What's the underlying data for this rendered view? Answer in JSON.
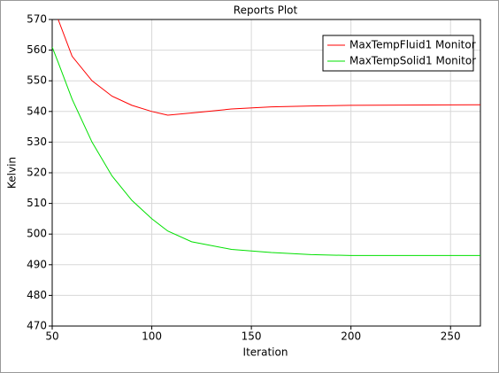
{
  "chart_data": {
    "type": "line",
    "title": "Reports Plot",
    "x_label": "Iteration",
    "y_label": "Kelvin",
    "x": [
      50,
      53,
      60,
      70,
      80,
      90,
      100,
      108,
      120,
      140,
      160,
      180,
      200,
      265
    ],
    "series": [
      {
        "name": "MaxTempFluid1 Monitor",
        "color": "#ff0000",
        "values": [
          null,
          570,
          558,
          550,
          545,
          542,
          540,
          538.8,
          539.5,
          540.8,
          541.5,
          541.8,
          542,
          542.2
        ]
      },
      {
        "name": "MaxTempSolid1 Monitor",
        "color": "#00e000",
        "values": [
          561,
          556,
          544,
          530,
          519,
          511,
          505,
          501,
          497.5,
          495,
          494,
          493.3,
          493,
          493
        ]
      }
    ],
    "xlim": [
      50,
      265
    ],
    "ylim": [
      470,
      570
    ],
    "xticks": [
      50,
      100,
      150,
      200,
      250
    ],
    "yticks": [
      470,
      480,
      490,
      500,
      510,
      520,
      530,
      540,
      550,
      560,
      570
    ],
    "grid": true,
    "legend": "top-right"
  }
}
